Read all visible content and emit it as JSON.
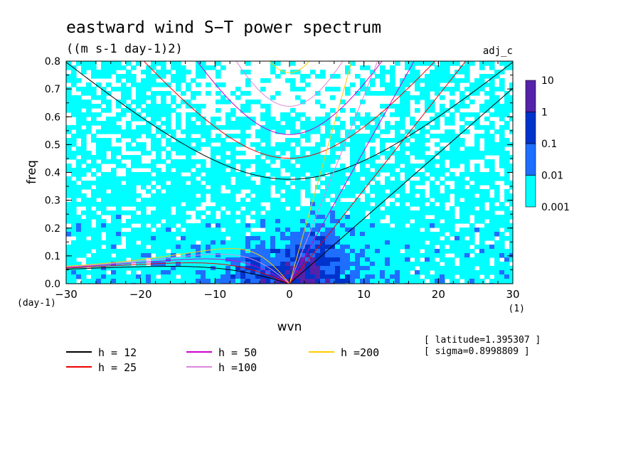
{
  "chart_data": {
    "type": "heatmap",
    "title": "eastward wind S−T power spectrum",
    "subtitle": "((m s-1 day-1)2)",
    "run_label": "adj_c",
    "xlabel": "wvn",
    "ylabel": "freq",
    "x_unit": "(1)",
    "y_unit": "(day-1)",
    "xlim": [
      -30,
      30
    ],
    "ylim": [
      0,
      0.8
    ],
    "x_ticks": [
      -30,
      -20,
      -10,
      0,
      10,
      20,
      30
    ],
    "x_tick_labels": [
      "−30",
      "−20",
      "−10",
      "0",
      "10",
      "20",
      "30"
    ],
    "y_ticks": [
      0,
      0.1,
      0.2,
      0.3,
      0.4,
      0.5,
      0.6,
      0.7,
      0.8
    ],
    "y_tick_labels": [
      "0.0",
      "0.1",
      "0.2",
      "0.3",
      "0.4",
      "0.5",
      "0.6",
      "0.7",
      "0.8"
    ],
    "colorbar": {
      "levels": [
        0.001,
        0.01,
        0.1,
        1,
        10
      ],
      "level_labels": [
        "0.001",
        "0.01",
        "0.1",
        "1",
        "10"
      ],
      "colors": [
        "#00ffff",
        "#1e6eff",
        "#0033cc",
        "#5522aa"
      ]
    },
    "dispersion_curves": [
      {
        "label": "h = 12",
        "h": 12,
        "color": "#000000"
      },
      {
        "label": "h = 25",
        "h": 25,
        "color": "#ee0000"
      },
      {
        "label": "h = 50",
        "h": 50,
        "color": "#cc00cc"
      },
      {
        "label": "h =100",
        "h": 100,
        "color": "#dd88dd"
      },
      {
        "label": "h =200",
        "h": 200,
        "color": "#ffcc00"
      }
    ],
    "annotations": {
      "latitude": "[ latitude=1.395307 ]",
      "sigma": "[ sigma=0.8998809 ]"
    }
  }
}
